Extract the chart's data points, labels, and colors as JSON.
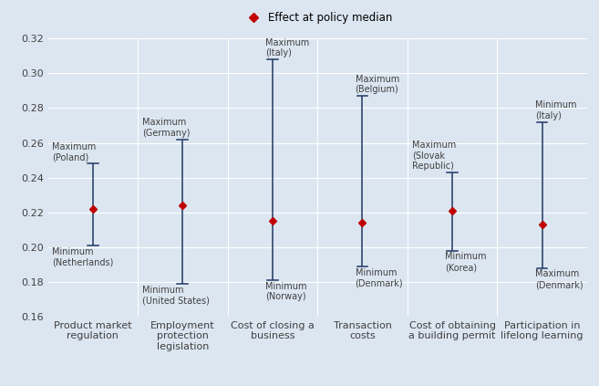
{
  "title": "Effect at policy median",
  "background_color": "#dce6f1",
  "plot_bg_color": "#dce6f1",
  "ylim": [
    0.16,
    0.32
  ],
  "yticks": [
    0.16,
    0.18,
    0.2,
    0.22,
    0.24,
    0.26,
    0.28,
    0.3,
    0.32
  ],
  "categories": [
    "Product market\nregulation",
    "Employment\nprotection\nlegislation",
    "Cost of closing a\nbusiness",
    "Transaction\ncosts",
    "Cost of obtaining\na building permit",
    "Participation in\nlifelong learning"
  ],
  "median_values": [
    0.222,
    0.224,
    0.215,
    0.214,
    0.221,
    0.213
  ],
  "max_values": [
    0.248,
    0.262,
    0.308,
    0.287,
    0.243,
    0.272
  ],
  "min_values": [
    0.201,
    0.179,
    0.181,
    0.189,
    0.198,
    0.188
  ],
  "max_labels": [
    "Maximum\n(Poland)",
    "Maximum\n(Germany)",
    "Maximum\n(Italy)",
    "Maximum\n(Belgium)",
    "Maximum\n(Slovak\nRepublic)",
    "Minimum\n(Italy)"
  ],
  "min_labels": [
    "Minimum\n(Netherlands)",
    "Minimum\n(United States)",
    "Minimum\n(Norway)",
    "Minimum\n(Denmark)",
    "Minimum\n(Korea)",
    "Maximum\n(Denmark)"
  ],
  "max_label_ha": [
    "left",
    "left",
    "left",
    "left",
    "left",
    "left"
  ],
  "min_label_ha": [
    "left",
    "left",
    "left",
    "left",
    "left",
    "left"
  ],
  "max_label_xoff": [
    -0.45,
    -0.45,
    -0.08,
    -0.08,
    -0.45,
    -0.08
  ],
  "min_label_xoff": [
    -0.45,
    -0.45,
    -0.08,
    -0.08,
    -0.08,
    -0.08
  ],
  "line_color": "#1f3864",
  "marker_color": "#c00000",
  "label_fontsize": 7.0,
  "tick_fontsize": 8.0,
  "legend_fontsize": 8.5
}
